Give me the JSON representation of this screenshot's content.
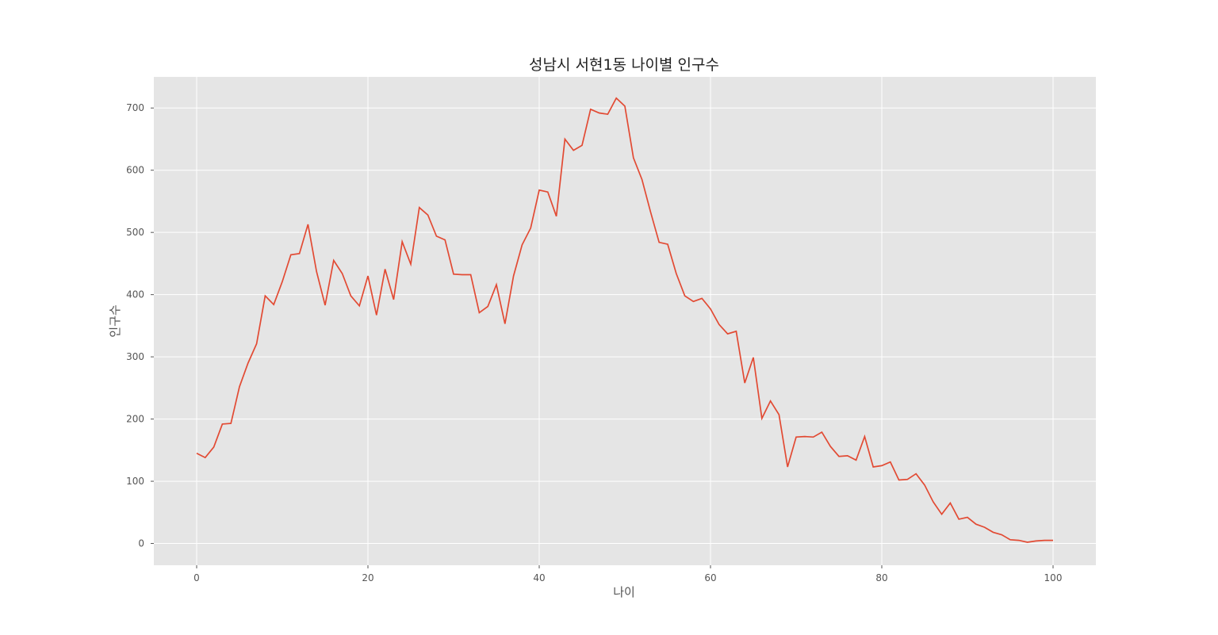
{
  "chart_data": {
    "type": "line",
    "title": "성남시 서현1동 나이별 인구수",
    "xlabel": "나이",
    "ylabel": "인구수",
    "xlim": [
      -5,
      105
    ],
    "ylim": [
      -35,
      750
    ],
    "xticks": [
      0,
      20,
      40,
      60,
      80,
      100
    ],
    "yticks": [
      0,
      100,
      200,
      300,
      400,
      500,
      600,
      700
    ],
    "grid": true,
    "legend": "none",
    "colors": {
      "background": "#e5e5e5",
      "grid": "#ffffff",
      "line": "#e24a33"
    },
    "series": [
      {
        "x": [
          0,
          1,
          2,
          3,
          4,
          5,
          6,
          7,
          8,
          9,
          10,
          11,
          12,
          13,
          14,
          15,
          16,
          17,
          18,
          19,
          20,
          21,
          22,
          23,
          24,
          25,
          26,
          27,
          28,
          29,
          30,
          31,
          32,
          33,
          34,
          35,
          36,
          37,
          38,
          39,
          40,
          41,
          42,
          43,
          44,
          45,
          46,
          47,
          48,
          49,
          50,
          51,
          52,
          53,
          54,
          55,
          56,
          57,
          58,
          59,
          60,
          61,
          62,
          63,
          64,
          65,
          66,
          67,
          68,
          69,
          70,
          71,
          72,
          73,
          74,
          75,
          76,
          77,
          78,
          79,
          80,
          81,
          82,
          83,
          84,
          85,
          86,
          87,
          88,
          89,
          90,
          91,
          92,
          93,
          94,
          95,
          96,
          97,
          98,
          99,
          100
        ],
        "values": [
          145,
          138,
          155,
          192,
          193,
          252,
          290,
          321,
          398,
          384,
          421,
          464,
          466,
          513,
          437,
          383,
          455,
          434,
          398,
          382,
          430,
          367,
          441,
          392,
          485,
          449,
          540,
          528,
          494,
          488,
          433,
          432,
          432,
          371,
          381,
          416,
          353,
          430,
          480,
          507,
          568,
          565,
          526,
          650,
          632,
          640,
          698,
          692,
          690,
          716,
          703,
          620,
          585,
          533,
          484,
          481,
          434,
          398,
          389,
          394,
          377,
          352,
          337,
          341,
          258,
          299,
          201,
          229,
          207,
          123,
          171,
          172,
          171,
          179,
          156,
          140,
          141,
          134,
          172,
          123,
          125,
          131,
          102,
          103,
          112,
          94,
          67,
          47,
          65,
          39,
          42,
          31,
          26,
          18,
          14,
          6,
          5,
          2,
          4,
          5,
          5
        ]
      }
    ]
  }
}
